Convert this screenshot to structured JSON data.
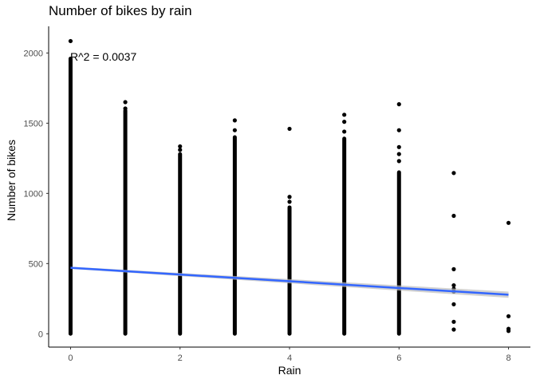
{
  "chart_data": {
    "type": "scatter",
    "title": "Number of bikes by rain",
    "xlabel": "Rain",
    "ylabel": "Number of bikes",
    "xlim": [
      -0.4,
      8.4
    ],
    "ylim": [
      -95,
      2190
    ],
    "x_ticks": [
      0,
      2,
      4,
      6,
      8
    ],
    "y_ticks": [
      0,
      500,
      1000,
      1500,
      2000
    ],
    "grid": false,
    "annotation": "R^2 = 0.0037",
    "columns": [
      {
        "x": 0,
        "min": 0,
        "max": 1960,
        "outliers": [
          2085
        ]
      },
      {
        "x": 1,
        "min": 0,
        "max": 1590,
        "outliers": [
          1650,
          1605
        ]
      },
      {
        "x": 2,
        "min": 0,
        "max": 1280,
        "outliers": [
          1335,
          1310
        ]
      },
      {
        "x": 3,
        "min": 0,
        "max": 1400,
        "outliers": [
          1520,
          1450
        ]
      },
      {
        "x": 4,
        "min": 0,
        "max": 900,
        "outliers": [
          1460,
          975,
          940
        ]
      },
      {
        "x": 5,
        "min": 0,
        "max": 1390,
        "outliers": [
          1560,
          1510,
          1440
        ]
      },
      {
        "x": 6,
        "min": 0,
        "max": 1150,
        "outliers": [
          1635,
          1450,
          1330,
          1280,
          1230
        ]
      }
    ],
    "points": [
      {
        "x": 7,
        "y": 1145
      },
      {
        "x": 7,
        "y": 840
      },
      {
        "x": 7,
        "y": 460
      },
      {
        "x": 7,
        "y": 345
      },
      {
        "x": 7,
        "y": 320
      },
      {
        "x": 7,
        "y": 300
      },
      {
        "x": 7,
        "y": 210
      },
      {
        "x": 7,
        "y": 85
      },
      {
        "x": 7,
        "y": 30
      },
      {
        "x": 8,
        "y": 790
      },
      {
        "x": 8,
        "y": 125
      },
      {
        "x": 8,
        "y": 35
      },
      {
        "x": 8,
        "y": 20
      }
    ],
    "trend": {
      "x": [
        0,
        8
      ],
      "y": [
        470,
        278
      ],
      "ci_halfwidth": [
        8,
        22
      ]
    },
    "colors": {
      "points": "#000000",
      "trend": "#3366FF",
      "ci": "#bdbdbd",
      "axis": "#000000"
    }
  }
}
